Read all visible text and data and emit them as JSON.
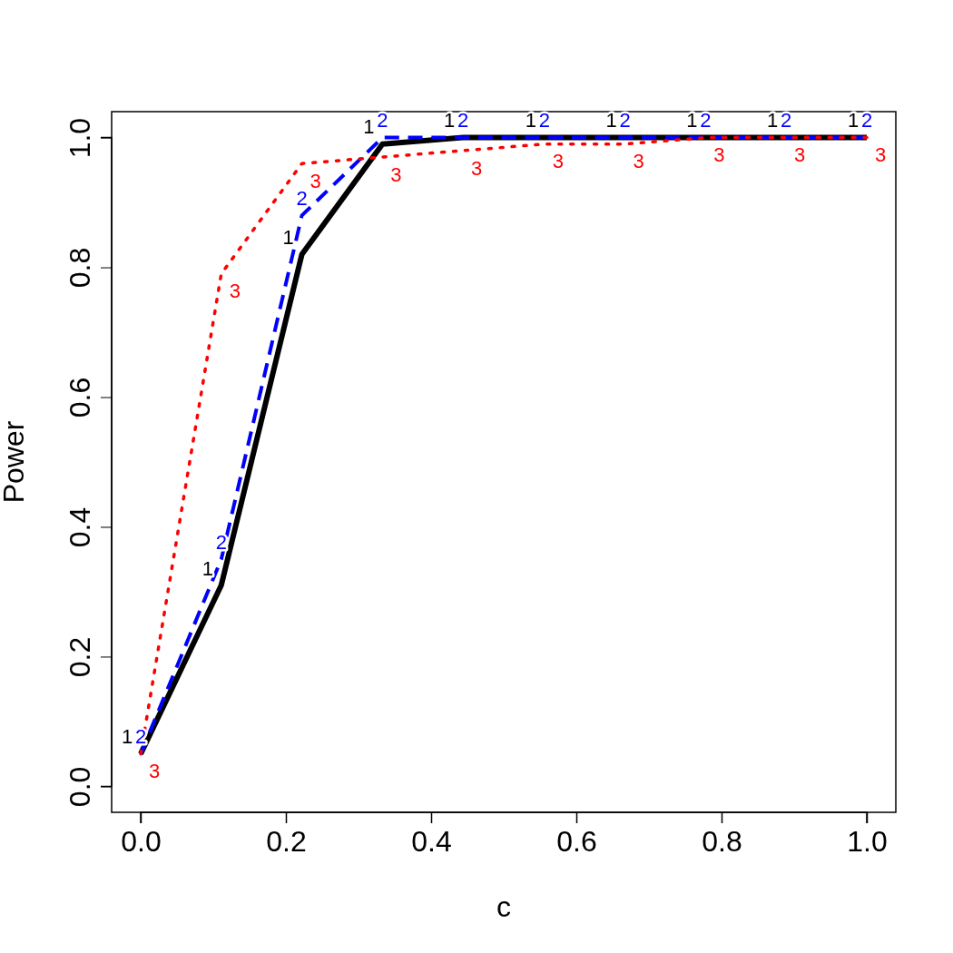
{
  "chart_data": {
    "type": "line",
    "xlabel": "c",
    "ylabel": "Power",
    "x": [
      0,
      0.111,
      0.222,
      0.333,
      0.444,
      0.556,
      0.667,
      0.778,
      0.889,
      1
    ],
    "series": [
      {
        "name": "1",
        "color": "#000000",
        "line_style": "solid",
        "values": [
          0.05,
          0.31,
          0.82,
          0.99,
          1.0,
          1.0,
          1.0,
          1.0,
          1.0,
          1.0
        ]
      },
      {
        "name": "2",
        "color": "#0000ff",
        "line_style": "dashed",
        "values": [
          0.05,
          0.35,
          0.88,
          1.0,
          1.0,
          1.0,
          1.0,
          1.0,
          1.0,
          1.0
        ]
      },
      {
        "name": "3",
        "color": "#ff0000",
        "line_style": "dotted",
        "values": [
          0.05,
          0.79,
          0.96,
          0.97,
          0.98,
          0.99,
          0.99,
          1.0,
          1.0,
          1.0
        ]
      }
    ],
    "xlim": [
      -0.04,
      1.04
    ],
    "ylim": [
      -0.04,
      1.04
    ],
    "xticks": [
      {
        "value": 0,
        "label": "0.0"
      },
      {
        "value": 0.2,
        "label": "0.2"
      },
      {
        "value": 0.4,
        "label": "0.4"
      },
      {
        "value": 0.6,
        "label": "0.6"
      },
      {
        "value": 0.8,
        "label": "0.8"
      },
      {
        "value": 1,
        "label": "1.0"
      }
    ],
    "yticks": [
      {
        "value": 0,
        "label": "0.0"
      },
      {
        "value": 0.2,
        "label": "0.2"
      },
      {
        "value": 0.4,
        "label": "0.4"
      },
      {
        "value": 0.6,
        "label": "0.6"
      },
      {
        "value": 0.8,
        "label": "0.8"
      },
      {
        "value": 1,
        "label": "1.0"
      }
    ],
    "grid": false,
    "legend": false,
    "marker": "none"
  }
}
